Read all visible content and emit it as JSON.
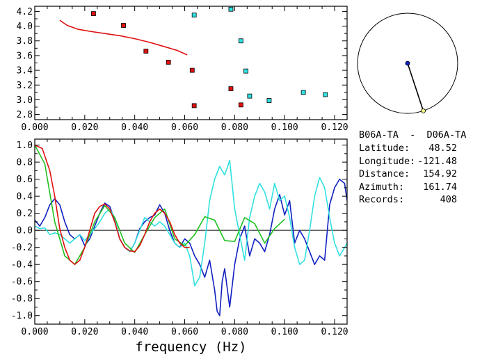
{
  "station_pair": "B06A-TA  -  D06A-TA",
  "info": [
    {
      "label": "Latitude:",
      "value": "48.52"
    },
    {
      "label": "Longitude:",
      "value": "-121.48"
    },
    {
      "label": "Distance:",
      "value": "154.92"
    },
    {
      "label": "Azimuth:",
      "value": "161.74"
    },
    {
      "label": "Records:",
      "value": "408"
    }
  ],
  "azimuth_deg": 161.74,
  "colors": {
    "red": "#e01010",
    "blue": "#1020c0",
    "cyan": "#30e0e0",
    "green": "#20c020",
    "axis": "#000000"
  },
  "chart_data": [
    {
      "type": "scatter",
      "title": "",
      "xlabel": "",
      "ylabel": "",
      "xlim": [
        0.0,
        0.125
      ],
      "ylim": [
        2.73,
        4.27
      ],
      "xticks": [
        "0.000",
        "0.020",
        "0.040",
        "0.060",
        "0.080",
        "0.100",
        "0.120"
      ],
      "yticks": [
        "2.8",
        "3.0",
        "3.2",
        "3.4",
        "3.6",
        "3.8",
        "4.0",
        "4.2"
      ],
      "series": [
        {
          "color": "#e01010",
          "marker": "square",
          "x": [
            0.0235,
            0.0355,
            0.0445,
            0.0535,
            0.063,
            0.0638,
            0.0785,
            0.0825
          ],
          "y": [
            4.17,
            4.01,
            3.66,
            3.51,
            3.4,
            2.92,
            3.15,
            2.93
          ]
        },
        {
          "color": "#30e0e0",
          "marker": "square",
          "x": [
            0.0638,
            0.0785,
            0.0825,
            0.0845,
            0.086,
            0.0938,
            0.1075,
            0.1163
          ],
          "y": [
            4.15,
            4.23,
            3.8,
            3.39,
            3.05,
            2.99,
            3.1,
            3.07
          ]
        },
        {
          "color": "#e01010",
          "line": true,
          "x": [
            0.01,
            0.013,
            0.017,
            0.022,
            0.028,
            0.034,
            0.04,
            0.046,
            0.052,
            0.057,
            0.061
          ],
          "y": [
            4.08,
            4.01,
            3.96,
            3.93,
            3.9,
            3.87,
            3.83,
            3.78,
            3.72,
            3.67,
            3.61
          ]
        }
      ]
    },
    {
      "type": "line",
      "title": "",
      "xlabel": "frequency (Hz)",
      "ylabel": "",
      "xlim": [
        0.0,
        0.125
      ],
      "ylim": [
        -1.1,
        1.07
      ],
      "zero_line": true,
      "xticks": [
        "0.000",
        "0.020",
        "0.040",
        "0.060",
        "0.080",
        "0.100",
        "0.120"
      ],
      "yticks": [
        "1.0",
        "0.8",
        "0.6",
        "0.4",
        "0.2",
        "0.0",
        "-0.2",
        "-0.4",
        "-0.6",
        "-0.8",
        "-1.0"
      ],
      "series": [
        {
          "color": "#1020c0",
          "x": [
            0.0,
            0.002,
            0.004,
            0.006,
            0.008,
            0.01,
            0.012,
            0.014,
            0.016,
            0.018,
            0.02,
            0.022,
            0.024,
            0.026,
            0.028,
            0.03,
            0.032,
            0.034,
            0.036,
            0.038,
            0.04,
            0.042,
            0.044,
            0.046,
            0.048,
            0.05,
            0.052,
            0.054,
            0.056,
            0.058,
            0.06,
            0.062,
            0.064,
            0.066,
            0.068,
            0.07,
            0.072,
            0.073,
            0.074,
            0.075,
            0.076,
            0.078,
            0.08,
            0.082,
            0.084,
            0.086,
            0.088,
            0.09,
            0.092,
            0.094,
            0.096,
            0.098,
            0.1,
            0.102,
            0.104,
            0.106,
            0.108,
            0.11,
            0.112,
            0.114,
            0.116,
            0.118,
            0.12,
            0.122,
            0.124,
            0.125
          ],
          "y": [
            0.12,
            0.05,
            0.15,
            0.3,
            0.37,
            0.3,
            0.1,
            -0.05,
            -0.1,
            -0.05,
            -0.18,
            -0.1,
            0.05,
            0.2,
            0.32,
            0.28,
            0.12,
            -0.1,
            -0.2,
            -0.25,
            -0.15,
            0.02,
            0.1,
            0.15,
            0.18,
            0.3,
            0.2,
            0.0,
            -0.15,
            -0.2,
            -0.1,
            -0.15,
            -0.3,
            -0.4,
            -0.55,
            -0.35,
            -0.7,
            -0.95,
            -1.0,
            -0.6,
            -0.45,
            -0.9,
            -0.4,
            -0.1,
            0.05,
            -0.3,
            -0.1,
            -0.15,
            -0.25,
            -0.05,
            0.25,
            0.42,
            0.18,
            0.35,
            -0.15,
            0.0,
            -0.1,
            -0.25,
            -0.4,
            -0.3,
            -0.35,
            0.3,
            0.5,
            0.6,
            0.55,
            0.35
          ]
        },
        {
          "color": "#30e0e0",
          "x": [
            0.0,
            0.002,
            0.004,
            0.006,
            0.008,
            0.01,
            0.012,
            0.014,
            0.016,
            0.018,
            0.02,
            0.022,
            0.024,
            0.026,
            0.028,
            0.03,
            0.032,
            0.034,
            0.036,
            0.038,
            0.04,
            0.042,
            0.044,
            0.046,
            0.048,
            0.05,
            0.052,
            0.054,
            0.056,
            0.058,
            0.06,
            0.062,
            0.064,
            0.066,
            0.068,
            0.07,
            0.072,
            0.074,
            0.076,
            0.078,
            0.08,
            0.082,
            0.084,
            0.086,
            0.088,
            0.09,
            0.092,
            0.094,
            0.096,
            0.098,
            0.1,
            0.102,
            0.104,
            0.106,
            0.108,
            0.11,
            0.112,
            0.114,
            0.116,
            0.118,
            0.12,
            0.122,
            0.124,
            0.125
          ],
          "y": [
            0.05,
            0.02,
            0.03,
            -0.05,
            -0.03,
            -0.05,
            -0.1,
            -0.15,
            -0.1,
            -0.05,
            -0.12,
            -0.05,
            0.02,
            0.1,
            0.2,
            0.25,
            0.15,
            -0.1,
            -0.2,
            -0.25,
            -0.15,
            0.0,
            0.15,
            0.1,
            0.05,
            0.1,
            0.05,
            -0.05,
            -0.15,
            -0.2,
            -0.15,
            -0.3,
            -0.65,
            -0.55,
            -0.15,
            0.35,
            0.6,
            0.75,
            0.65,
            0.82,
            0.25,
            -0.05,
            -0.35,
            0.15,
            0.4,
            0.55,
            0.45,
            0.25,
            0.55,
            0.35,
            0.4,
            0.15,
            -0.2,
            -0.4,
            -0.35,
            0.0,
            0.4,
            0.62,
            0.5,
            0.15,
            -0.15,
            -0.3,
            -0.2,
            -0.15
          ]
        },
        {
          "color": "#20c020",
          "x": [
            0.0,
            0.004,
            0.008,
            0.012,
            0.016,
            0.02,
            0.024,
            0.028,
            0.032,
            0.036,
            0.04,
            0.044,
            0.048,
            0.052,
            0.056,
            0.06,
            0.064,
            0.068,
            0.072,
            0.076,
            0.08,
            0.084,
            0.088,
            0.092,
            0.096,
            0.1
          ],
          "y": [
            1.0,
            0.78,
            0.1,
            -0.3,
            -0.4,
            -0.2,
            0.1,
            0.29,
            0.15,
            -0.15,
            -0.26,
            -0.05,
            0.15,
            0.25,
            -0.1,
            -0.18,
            -0.05,
            0.16,
            0.12,
            -0.12,
            -0.13,
            0.15,
            0.08,
            -0.15,
            0.02,
            0.13
          ]
        },
        {
          "color": "#e01010",
          "x": [
            0.0,
            0.003,
            0.006,
            0.008,
            0.01,
            0.012,
            0.014,
            0.016,
            0.018,
            0.02,
            0.022,
            0.024,
            0.026,
            0.028,
            0.03,
            0.032,
            0.034,
            0.036,
            0.038,
            0.04,
            0.042,
            0.044,
            0.046,
            0.048,
            0.05,
            0.052,
            0.054,
            0.056,
            0.058,
            0.06,
            0.062
          ],
          "y": [
            1.0,
            0.96,
            0.7,
            0.4,
            0.02,
            -0.2,
            -0.35,
            -0.4,
            -0.35,
            -0.2,
            0.0,
            0.2,
            0.28,
            0.31,
            0.25,
            0.1,
            -0.1,
            -0.2,
            -0.24,
            -0.25,
            -0.18,
            -0.05,
            0.1,
            0.2,
            0.25,
            0.2,
            0.1,
            -0.05,
            -0.15,
            -0.2,
            -0.2
          ]
        }
      ]
    }
  ]
}
